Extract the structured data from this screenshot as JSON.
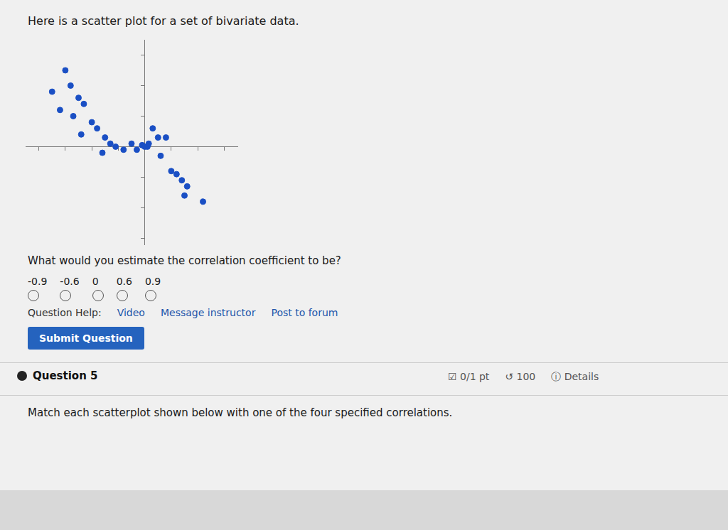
{
  "chart_data": {
    "type": "scatter",
    "title": "Here is a scatter plot for a set of bivariate data.",
    "x": [
      -3.5,
      -3.0,
      -3.2,
      -2.8,
      -2.5,
      -2.7,
      -2.3,
      -2.0,
      -2.4,
      -1.8,
      -1.6,
      -1.3,
      -1.5,
      -1.1,
      -0.8,
      -0.5,
      -0.3,
      -0.1,
      0.0,
      0.1,
      0.15,
      0.3,
      0.5,
      0.6,
      0.8,
      1.0,
      1.2,
      1.4,
      1.6,
      1.5,
      2.2
    ],
    "values": [
      1.8,
      2.5,
      1.2,
      2.0,
      1.6,
      1.0,
      1.4,
      0.8,
      0.4,
      0.6,
      -0.2,
      0.1,
      0.3,
      0.0,
      -0.1,
      0.1,
      -0.1,
      0.05,
      0.0,
      0.0,
      0.1,
      0.6,
      0.3,
      -0.3,
      0.3,
      -0.8,
      -0.9,
      -1.1,
      -1.3,
      -1.6,
      -1.8
    ],
    "color": "#1a4fc4",
    "xlim": [
      -4.5,
      3.5
    ],
    "ylim": [
      -3.2,
      3.5
    ],
    "xticks": [
      -4,
      -3,
      -2,
      -1,
      1,
      2,
      3
    ],
    "yticks": [
      -3,
      -2,
      -1,
      1,
      2,
      3
    ],
    "grid": false,
    "tick_labels": false,
    "annotations": [
      "What would you estimate the correlation coefficient to be?",
      "-0.9",
      "-0.6",
      "0",
      "0.6",
      "0.9",
      "Question Help:",
      "Video",
      "Message instructor",
      "Post to forum",
      "Submit Question",
      "Question 5",
      "☑ 0/1 pt",
      "↺ 100",
      "ⓘ Details",
      "Match each scatterplot shown below with one of the four specified correlations."
    ]
  }
}
